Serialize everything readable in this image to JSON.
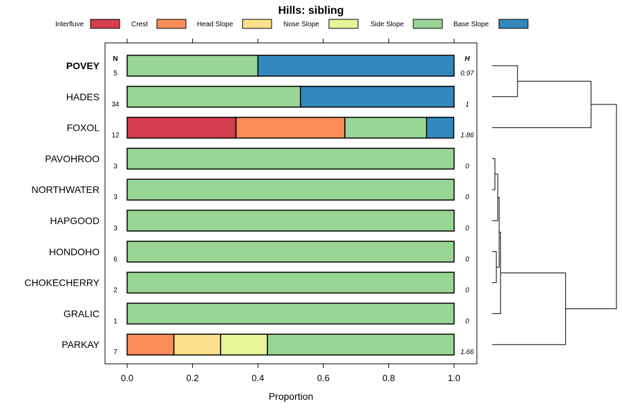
{
  "chart_data": {
    "type": "bar",
    "orientation": "horizontal",
    "stacked": "proportion",
    "title": "Hills: sibling",
    "xlabel": "Proportion",
    "xlim": [
      0,
      1
    ],
    "xticks": [
      0,
      0.2,
      0.4,
      0.6,
      0.8,
      1
    ],
    "xtick_labels": [
      "0.0",
      "0.2",
      "0.4",
      "0.6",
      "0.8",
      "1.0"
    ],
    "n_header": "N",
    "h_header": "H",
    "legend_position": "top",
    "legend": [
      {
        "name": "Interfluve",
        "color": "#d53e4f"
      },
      {
        "name": "Crest",
        "color": "#fc8d59"
      },
      {
        "name": "Head Slope",
        "color": "#fee08b"
      },
      {
        "name": "Nose Slope",
        "color": "#e6f598"
      },
      {
        "name": "Side Slope",
        "color": "#99d594"
      },
      {
        "name": "Base Slope",
        "color": "#3288bd"
      }
    ],
    "rows": [
      {
        "label": "POVEY",
        "bold": true,
        "n": "5",
        "h": "0.97",
        "values": [
          0,
          0,
          0,
          0,
          0.4,
          0.6
        ]
      },
      {
        "label": "HADES",
        "bold": false,
        "n": "34",
        "h": "1",
        "values": [
          0,
          0,
          0,
          0,
          0.53,
          0.47
        ]
      },
      {
        "label": "FOXOL",
        "bold": false,
        "n": "12",
        "h": "1.86",
        "values": [
          0.333,
          0.333,
          0,
          0,
          0.25,
          0.083
        ]
      },
      {
        "label": "PAVOHROO",
        "bold": false,
        "n": "3",
        "h": "0",
        "values": [
          0,
          0,
          0,
          0,
          1,
          0
        ]
      },
      {
        "label": "NORTHWATER",
        "bold": false,
        "n": "3",
        "h": "0",
        "values": [
          0,
          0,
          0,
          0,
          1,
          0
        ]
      },
      {
        "label": "HAPGOOD",
        "bold": false,
        "n": "3",
        "h": "0",
        "values": [
          0,
          0,
          0,
          0,
          1,
          0
        ]
      },
      {
        "label": "HONDOHO",
        "bold": false,
        "n": "6",
        "h": "0",
        "values": [
          0,
          0,
          0,
          0,
          1,
          0
        ]
      },
      {
        "label": "CHOKECHERRY",
        "bold": false,
        "n": "2",
        "h": "0",
        "values": [
          0,
          0,
          0,
          0,
          1,
          0
        ]
      },
      {
        "label": "GRALIC",
        "bold": false,
        "n": "1",
        "h": "0",
        "values": [
          0,
          0,
          0,
          0,
          1,
          0
        ]
      },
      {
        "label": "PARKAY",
        "bold": false,
        "n": "7",
        "h": "1.66",
        "values": [
          0,
          0.143,
          0.143,
          0.143,
          0.571,
          0
        ]
      }
    ],
    "dendrogram": {
      "merges": [
        {
          "a": "POVEY",
          "b": "HADES",
          "height": 0.18
        },
        {
          "a": "PAVOHROO",
          "b": "NORTHWATER",
          "height": 0.02
        },
        {
          "a": "HONDOHO",
          "b": "CHOKECHERRY",
          "height": 0.03
        },
        {
          "a": "c2",
          "b": "HAPGOOD",
          "height": 0.04
        },
        {
          "a": "c4",
          "b": "c3",
          "height": 0.05
        },
        {
          "a": "c5",
          "b": "GRALIC",
          "height": 0.06
        },
        {
          "a": "c1",
          "b": "FOXOL",
          "height": 0.7
        },
        {
          "a": "c6",
          "b": "PARKAY",
          "height": 0.52
        },
        {
          "a": "c7",
          "b": "c8",
          "height": 0.88
        }
      ]
    }
  }
}
